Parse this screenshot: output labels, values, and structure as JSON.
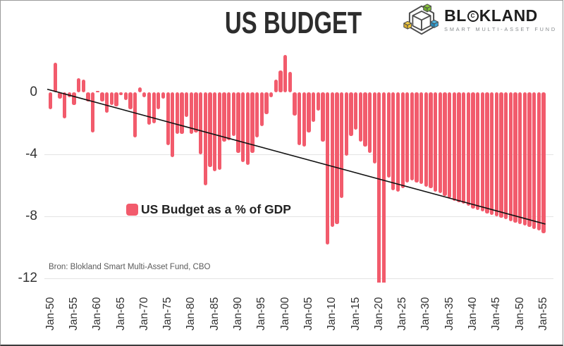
{
  "header": {
    "title": "US BUDGET"
  },
  "logo": {
    "name_pre": "BL",
    "copyright_letter": "C",
    "name_post": "KLAND",
    "subtitle": "SMART MULTI-ASSET FUND",
    "cube_colors": {
      "green": "#7DBE3B",
      "yellow": "#EEC538",
      "blue": "#3BA7D9",
      "outline": "#4d4d4d"
    }
  },
  "legend": {
    "label": "US Budget as a % of GDP"
  },
  "source": {
    "text": "Bron: Blokland Smart Multi-Asset Fund, CBO"
  },
  "chart_data": {
    "type": "bar",
    "title": "US BUDGET",
    "series_name": "US Budget as a % of GDP",
    "bar_color": "#F25B6C",
    "grid": true,
    "ylim": [
      -12.3,
      2.8
    ],
    "x_start_year": 1950,
    "x_end_year": 2055,
    "x_tick_step": 5,
    "x_tick_labels": [
      "Jan-50",
      "Jan-55",
      "Jan-60",
      "Jan-65",
      "Jan-70",
      "Jan-75",
      "Jan-80",
      "Jan-85",
      "Jan-90",
      "Jan-95",
      "Jan-00",
      "Jan-05",
      "Jan-10",
      "Jan-15",
      "Jan-20",
      "Jan-25",
      "Jan-30",
      "Jan-35",
      "Jan-40",
      "Jan-45",
      "Jan-50",
      "Jan-55"
    ],
    "y_ticks": [
      0,
      -4,
      -8,
      -12
    ],
    "y_tick_labels": [
      "0",
      "-4",
      "-8",
      "-12"
    ],
    "trend_line": {
      "start": {
        "year": 1950,
        "value": 0.2
      },
      "end": {
        "year": 2055,
        "value": -8.5
      },
      "color": "#111111"
    },
    "points": [
      [
        1950,
        -1.1
      ],
      [
        1951,
        1.9
      ],
      [
        1952,
        -0.4
      ],
      [
        1953,
        -1.7
      ],
      [
        1954,
        -0.3
      ],
      [
        1955,
        -0.8
      ],
      [
        1956,
        0.9
      ],
      [
        1957,
        0.8
      ],
      [
        1958,
        -0.6
      ],
      [
        1959,
        -2.6
      ],
      [
        1960,
        0.1
      ],
      [
        1961,
        -0.6
      ],
      [
        1962,
        -1.3
      ],
      [
        1963,
        -0.8
      ],
      [
        1964,
        -0.9
      ],
      [
        1965,
        -0.2
      ],
      [
        1966,
        -0.5
      ],
      [
        1967,
        -1.1
      ],
      [
        1968,
        -2.9
      ],
      [
        1969,
        0.3
      ],
      [
        1970,
        -0.3
      ],
      [
        1971,
        -2.1
      ],
      [
        1972,
        -2.0
      ],
      [
        1973,
        -1.1
      ],
      [
        1974,
        -0.4
      ],
      [
        1975,
        -3.4
      ],
      [
        1976,
        -4.2
      ],
      [
        1977,
        -2.7
      ],
      [
        1978,
        -2.7
      ],
      [
        1979,
        -1.6
      ],
      [
        1980,
        -2.7
      ],
      [
        1981,
        -2.6
      ],
      [
        1982,
        -4.0
      ],
      [
        1983,
        -6.0
      ],
      [
        1984,
        -4.8
      ],
      [
        1985,
        -5.1
      ],
      [
        1986,
        -5.0
      ],
      [
        1987,
        -3.2
      ],
      [
        1988,
        -3.1
      ],
      [
        1989,
        -2.8
      ],
      [
        1990,
        -3.9
      ],
      [
        1991,
        -4.5
      ],
      [
        1992,
        -4.7
      ],
      [
        1993,
        -3.9
      ],
      [
        1994,
        -2.9
      ],
      [
        1995,
        -2.2
      ],
      [
        1996,
        -1.4
      ],
      [
        1997,
        -0.3
      ],
      [
        1998,
        0.8
      ],
      [
        1999,
        1.4
      ],
      [
        2000,
        2.4
      ],
      [
        2001,
        1.3
      ],
      [
        2002,
        -1.5
      ],
      [
        2003,
        -3.4
      ],
      [
        2004,
        -3.5
      ],
      [
        2005,
        -2.6
      ],
      [
        2006,
        -1.9
      ],
      [
        2007,
        -1.2
      ],
      [
        2008,
        -3.2
      ],
      [
        2009,
        -9.8
      ],
      [
        2010,
        -8.7
      ],
      [
        2011,
        -8.5
      ],
      [
        2012,
        -6.8
      ],
      [
        2013,
        -4.1
      ],
      [
        2014,
        -2.8
      ],
      [
        2015,
        -2.4
      ],
      [
        2016,
        -3.2
      ],
      [
        2017,
        -3.5
      ],
      [
        2018,
        -3.9
      ],
      [
        2019,
        -4.6
      ],
      [
        2020,
        -14.9
      ],
      [
        2021,
        -12.4
      ],
      [
        2022,
        -5.5
      ],
      [
        2023,
        -6.3
      ],
      [
        2024,
        -6.4
      ],
      [
        2025,
        -6.2
      ],
      [
        2026,
        -5.8
      ],
      [
        2027,
        -5.7
      ],
      [
        2028,
        -5.8
      ],
      [
        2029,
        -5.9
      ],
      [
        2030,
        -6.1
      ],
      [
        2031,
        -6.2
      ],
      [
        2032,
        -6.4
      ],
      [
        2033,
        -6.5
      ],
      [
        2034,
        -6.7
      ],
      [
        2035,
        -6.8
      ],
      [
        2036,
        -7.0
      ],
      [
        2037,
        -7.1
      ],
      [
        2038,
        -7.2
      ],
      [
        2039,
        -7.3
      ],
      [
        2040,
        -7.5
      ],
      [
        2041,
        -7.6
      ],
      [
        2042,
        -7.7
      ],
      [
        2043,
        -7.8
      ],
      [
        2044,
        -7.9
      ],
      [
        2045,
        -8.0
      ],
      [
        2046,
        -8.1
      ],
      [
        2047,
        -8.2
      ],
      [
        2048,
        -8.3
      ],
      [
        2049,
        -8.4
      ],
      [
        2050,
        -8.5
      ],
      [
        2051,
        -8.6
      ],
      [
        2052,
        -8.7
      ],
      [
        2053,
        -8.8
      ],
      [
        2054,
        -8.9
      ],
      [
        2055,
        -9.1
      ]
    ]
  }
}
